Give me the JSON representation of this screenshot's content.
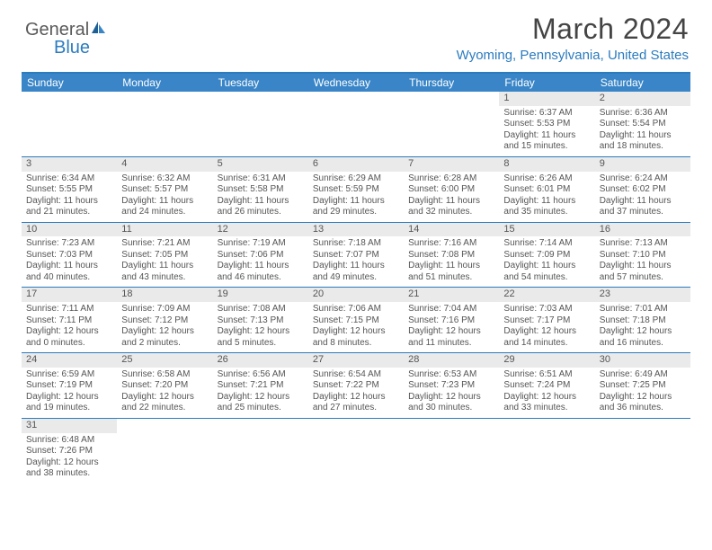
{
  "logo": {
    "text1": "General",
    "text2": "Blue"
  },
  "title": "March 2024",
  "location": "Wyoming, Pennsylvania, United States",
  "colors": {
    "header_bg": "#3985c7",
    "border": "#2b7bbf",
    "daynum_bg": "#eaeaea",
    "text": "#555555",
    "link": "#2b7bbf"
  },
  "day_headers": [
    "Sunday",
    "Monday",
    "Tuesday",
    "Wednesday",
    "Thursday",
    "Friday",
    "Saturday"
  ],
  "weeks": [
    [
      null,
      null,
      null,
      null,
      null,
      {
        "n": "1",
        "sr": "6:37 AM",
        "ss": "5:53 PM",
        "dh": "11",
        "dm": "15"
      },
      {
        "n": "2",
        "sr": "6:36 AM",
        "ss": "5:54 PM",
        "dh": "11",
        "dm": "18"
      }
    ],
    [
      {
        "n": "3",
        "sr": "6:34 AM",
        "ss": "5:55 PM",
        "dh": "11",
        "dm": "21"
      },
      {
        "n": "4",
        "sr": "6:32 AM",
        "ss": "5:57 PM",
        "dh": "11",
        "dm": "24"
      },
      {
        "n": "5",
        "sr": "6:31 AM",
        "ss": "5:58 PM",
        "dh": "11",
        "dm": "26"
      },
      {
        "n": "6",
        "sr": "6:29 AM",
        "ss": "5:59 PM",
        "dh": "11",
        "dm": "29"
      },
      {
        "n": "7",
        "sr": "6:28 AM",
        "ss": "6:00 PM",
        "dh": "11",
        "dm": "32"
      },
      {
        "n": "8",
        "sr": "6:26 AM",
        "ss": "6:01 PM",
        "dh": "11",
        "dm": "35"
      },
      {
        "n": "9",
        "sr": "6:24 AM",
        "ss": "6:02 PM",
        "dh": "11",
        "dm": "37"
      }
    ],
    [
      {
        "n": "10",
        "sr": "7:23 AM",
        "ss": "7:03 PM",
        "dh": "11",
        "dm": "40"
      },
      {
        "n": "11",
        "sr": "7:21 AM",
        "ss": "7:05 PM",
        "dh": "11",
        "dm": "43"
      },
      {
        "n": "12",
        "sr": "7:19 AM",
        "ss": "7:06 PM",
        "dh": "11",
        "dm": "46"
      },
      {
        "n": "13",
        "sr": "7:18 AM",
        "ss": "7:07 PM",
        "dh": "11",
        "dm": "49"
      },
      {
        "n": "14",
        "sr": "7:16 AM",
        "ss": "7:08 PM",
        "dh": "11",
        "dm": "51"
      },
      {
        "n": "15",
        "sr": "7:14 AM",
        "ss": "7:09 PM",
        "dh": "11",
        "dm": "54"
      },
      {
        "n": "16",
        "sr": "7:13 AM",
        "ss": "7:10 PM",
        "dh": "11",
        "dm": "57"
      }
    ],
    [
      {
        "n": "17",
        "sr": "7:11 AM",
        "ss": "7:11 PM",
        "dh": "12",
        "dm": "0"
      },
      {
        "n": "18",
        "sr": "7:09 AM",
        "ss": "7:12 PM",
        "dh": "12",
        "dm": "2"
      },
      {
        "n": "19",
        "sr": "7:08 AM",
        "ss": "7:13 PM",
        "dh": "12",
        "dm": "5"
      },
      {
        "n": "20",
        "sr": "7:06 AM",
        "ss": "7:15 PM",
        "dh": "12",
        "dm": "8"
      },
      {
        "n": "21",
        "sr": "7:04 AM",
        "ss": "7:16 PM",
        "dh": "12",
        "dm": "11"
      },
      {
        "n": "22",
        "sr": "7:03 AM",
        "ss": "7:17 PM",
        "dh": "12",
        "dm": "14"
      },
      {
        "n": "23",
        "sr": "7:01 AM",
        "ss": "7:18 PM",
        "dh": "12",
        "dm": "16"
      }
    ],
    [
      {
        "n": "24",
        "sr": "6:59 AM",
        "ss": "7:19 PM",
        "dh": "12",
        "dm": "19"
      },
      {
        "n": "25",
        "sr": "6:58 AM",
        "ss": "7:20 PM",
        "dh": "12",
        "dm": "22"
      },
      {
        "n": "26",
        "sr": "6:56 AM",
        "ss": "7:21 PM",
        "dh": "12",
        "dm": "25"
      },
      {
        "n": "27",
        "sr": "6:54 AM",
        "ss": "7:22 PM",
        "dh": "12",
        "dm": "27"
      },
      {
        "n": "28",
        "sr": "6:53 AM",
        "ss": "7:23 PM",
        "dh": "12",
        "dm": "30"
      },
      {
        "n": "29",
        "sr": "6:51 AM",
        "ss": "7:24 PM",
        "dh": "12",
        "dm": "33"
      },
      {
        "n": "30",
        "sr": "6:49 AM",
        "ss": "7:25 PM",
        "dh": "12",
        "dm": "36"
      }
    ],
    [
      {
        "n": "31",
        "sr": "6:48 AM",
        "ss": "7:26 PM",
        "dh": "12",
        "dm": "38"
      },
      null,
      null,
      null,
      null,
      null,
      null
    ]
  ]
}
